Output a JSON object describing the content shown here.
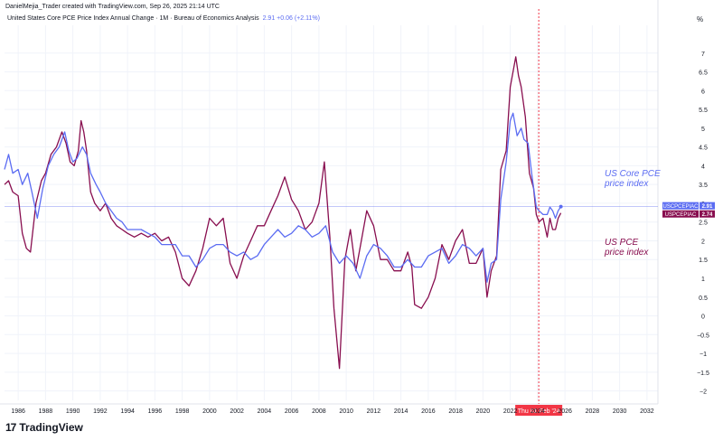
{
  "header": {
    "attribution": "DanielMejia_Trader created with TradingView.com, Sep 26, 2025 21:14 UTC",
    "series_title": "United States Core PCE Price Index Annual Change · 1M · Bureau of Economics Analysis",
    "series_value": "2.91  +0.06 (+2.11%)",
    "unit": "%"
  },
  "footer": {
    "logo_text": "TradingView",
    "logo_mark": "17"
  },
  "colors": {
    "core": "#5b6cf2",
    "pce": "#880e4f",
    "marker": "#f23645",
    "grid": "#f0f3fa",
    "axis_text": "#131722"
  },
  "chart_data": {
    "type": "line",
    "xlim": [
      1985.0,
      2032.8
    ],
    "ylim": [
      -2.25,
      7.5
    ],
    "x_ticks": [
      1986,
      1988,
      1990,
      1992,
      1994,
      1996,
      1998,
      2000,
      2002,
      2004,
      2006,
      2008,
      2010,
      2012,
      2014,
      2016,
      2018,
      2020,
      2022,
      2024,
      2026,
      2028,
      2030,
      2032
    ],
    "x_tick_labels": [
      "1986",
      "1988",
      "1990",
      "1992",
      "1994",
      "1996",
      "1998",
      "2000",
      "2002",
      "2004",
      "2006",
      "2008",
      "2010",
      "2012",
      "2014",
      "2016",
      "2018",
      "2020",
      "2022",
      "2024",
      "2026",
      "2028",
      "2030",
      "2032"
    ],
    "y_ticks": [
      7,
      6.5,
      6,
      5.5,
      5,
      4.5,
      4,
      3.5,
      3,
      2.5,
      2,
      1.5,
      1,
      0.5,
      0,
      -0.5,
      -1,
      -1.5,
      -2
    ],
    "y_tick_labels": [
      "7",
      "6.5",
      "6",
      "5.5",
      "5",
      "4.5",
      "4",
      "3.5",
      "3",
      "2.5",
      "2",
      "1.5",
      "1",
      "0.5",
      "0",
      "−0.5",
      "−1",
      "−1.5",
      "−2"
    ],
    "marker": {
      "x": 2024.083,
      "label": "Thu 01 Feb '24"
    },
    "series": [
      {
        "name": "USCPCEPIAC",
        "value_label": "2.91",
        "last_value": 2.91,
        "color": "#5b6cf2",
        "annotation": [
          "US Core PCE",
          "price index"
        ],
        "points": [
          [
            1985.0,
            3.9
          ],
          [
            1985.3,
            4.3
          ],
          [
            1985.6,
            3.8
          ],
          [
            1986.0,
            3.9
          ],
          [
            1986.3,
            3.5
          ],
          [
            1986.7,
            3.8
          ],
          [
            1987.0,
            3.3
          ],
          [
            1987.4,
            2.6
          ],
          [
            1987.8,
            3.4
          ],
          [
            1988.2,
            4.0
          ],
          [
            1988.6,
            4.3
          ],
          [
            1989.0,
            4.5
          ],
          [
            1989.4,
            4.9
          ],
          [
            1989.7,
            4.4
          ],
          [
            1990.0,
            4.1
          ],
          [
            1990.3,
            4.2
          ],
          [
            1990.7,
            4.5
          ],
          [
            1991.0,
            4.3
          ],
          [
            1991.3,
            3.8
          ],
          [
            1991.7,
            3.5
          ],
          [
            1992.0,
            3.3
          ],
          [
            1992.4,
            3.0
          ],
          [
            1992.8,
            2.8
          ],
          [
            1993.2,
            2.6
          ],
          [
            1993.6,
            2.5
          ],
          [
            1994.0,
            2.3
          ],
          [
            1994.5,
            2.3
          ],
          [
            1995.0,
            2.3
          ],
          [
            1995.5,
            2.2
          ],
          [
            1996.0,
            2.1
          ],
          [
            1996.5,
            1.9
          ],
          [
            1997.0,
            1.9
          ],
          [
            1997.5,
            1.9
          ],
          [
            1998.0,
            1.6
          ],
          [
            1998.5,
            1.6
          ],
          [
            1999.0,
            1.3
          ],
          [
            1999.5,
            1.5
          ],
          [
            2000.0,
            1.8
          ],
          [
            2000.5,
            1.9
          ],
          [
            2001.0,
            1.9
          ],
          [
            2001.5,
            1.7
          ],
          [
            2002.0,
            1.6
          ],
          [
            2002.5,
            1.7
          ],
          [
            2003.0,
            1.5
          ],
          [
            2003.5,
            1.6
          ],
          [
            2004.0,
            1.9
          ],
          [
            2004.5,
            2.1
          ],
          [
            2005.0,
            2.3
          ],
          [
            2005.5,
            2.1
          ],
          [
            2006.0,
            2.2
          ],
          [
            2006.5,
            2.4
          ],
          [
            2007.0,
            2.3
          ],
          [
            2007.5,
            2.1
          ],
          [
            2008.0,
            2.2
          ],
          [
            2008.5,
            2.4
          ],
          [
            2009.0,
            1.7
          ],
          [
            2009.5,
            1.4
          ],
          [
            2010.0,
            1.6
          ],
          [
            2010.5,
            1.4
          ],
          [
            2011.0,
            1.0
          ],
          [
            2011.5,
            1.6
          ],
          [
            2012.0,
            1.9
          ],
          [
            2012.5,
            1.8
          ],
          [
            2013.0,
            1.6
          ],
          [
            2013.5,
            1.3
          ],
          [
            2014.0,
            1.3
          ],
          [
            2014.5,
            1.5
          ],
          [
            2015.0,
            1.3
          ],
          [
            2015.5,
            1.3
          ],
          [
            2016.0,
            1.6
          ],
          [
            2016.5,
            1.7
          ],
          [
            2017.0,
            1.8
          ],
          [
            2017.5,
            1.4
          ],
          [
            2018.0,
            1.6
          ],
          [
            2018.5,
            1.9
          ],
          [
            2019.0,
            1.8
          ],
          [
            2019.5,
            1.6
          ],
          [
            2020.0,
            1.8
          ],
          [
            2020.3,
            0.9
          ],
          [
            2020.6,
            1.4
          ],
          [
            2021.0,
            1.5
          ],
          [
            2021.3,
            3.1
          ],
          [
            2021.7,
            4.1
          ],
          [
            2022.0,
            5.2
          ],
          [
            2022.2,
            5.4
          ],
          [
            2022.5,
            4.8
          ],
          [
            2022.8,
            5.0
          ],
          [
            2023.0,
            4.7
          ],
          [
            2023.3,
            4.6
          ],
          [
            2023.6,
            3.7
          ],
          [
            2023.9,
            2.9
          ],
          [
            2024.1,
            2.8
          ],
          [
            2024.4,
            2.7
          ],
          [
            2024.7,
            2.7
          ],
          [
            2024.9,
            2.9
          ],
          [
            2025.1,
            2.8
          ],
          [
            2025.3,
            2.6
          ],
          [
            2025.5,
            2.8
          ],
          [
            2025.7,
            2.91
          ]
        ]
      },
      {
        "name": "USPCEPIAC",
        "value_label": "2.74",
        "last_value": 2.74,
        "color": "#880e4f",
        "annotation": [
          "US PCE",
          "price index"
        ],
        "points": [
          [
            1985.0,
            3.5
          ],
          [
            1985.3,
            3.6
          ],
          [
            1985.6,
            3.3
          ],
          [
            1986.0,
            3.2
          ],
          [
            1986.3,
            2.2
          ],
          [
            1986.6,
            1.8
          ],
          [
            1986.9,
            1.7
          ],
          [
            1987.3,
            3.0
          ],
          [
            1987.7,
            3.6
          ],
          [
            1988.0,
            3.8
          ],
          [
            1988.4,
            4.3
          ],
          [
            1988.8,
            4.5
          ],
          [
            1989.2,
            4.9
          ],
          [
            1989.5,
            4.6
          ],
          [
            1989.8,
            4.1
          ],
          [
            1990.1,
            4.0
          ],
          [
            1990.4,
            4.4
          ],
          [
            1990.6,
            5.2
          ],
          [
            1990.8,
            4.9
          ],
          [
            1991.0,
            4.4
          ],
          [
            1991.3,
            3.3
          ],
          [
            1991.6,
            3.0
          ],
          [
            1992.0,
            2.8
          ],
          [
            1992.4,
            3.0
          ],
          [
            1992.8,
            2.6
          ],
          [
            1993.2,
            2.4
          ],
          [
            1993.6,
            2.3
          ],
          [
            1994.0,
            2.2
          ],
          [
            1994.5,
            2.1
          ],
          [
            1995.0,
            2.2
          ],
          [
            1995.5,
            2.1
          ],
          [
            1996.0,
            2.2
          ],
          [
            1996.5,
            2.0
          ],
          [
            1997.0,
            2.1
          ],
          [
            1997.5,
            1.7
          ],
          [
            1998.0,
            1.0
          ],
          [
            1998.5,
            0.8
          ],
          [
            1999.0,
            1.2
          ],
          [
            1999.5,
            1.8
          ],
          [
            2000.0,
            2.6
          ],
          [
            2000.5,
            2.4
          ],
          [
            2001.0,
            2.6
          ],
          [
            2001.5,
            1.4
          ],
          [
            2002.0,
            1.0
          ],
          [
            2002.5,
            1.6
          ],
          [
            2003.0,
            2.0
          ],
          [
            2003.5,
            2.4
          ],
          [
            2004.0,
            2.4
          ],
          [
            2004.5,
            2.8
          ],
          [
            2005.0,
            3.2
          ],
          [
            2005.5,
            3.7
          ],
          [
            2006.0,
            3.1
          ],
          [
            2006.5,
            2.8
          ],
          [
            2007.0,
            2.3
          ],
          [
            2007.5,
            2.5
          ],
          [
            2008.0,
            3.0
          ],
          [
            2008.4,
            4.1
          ],
          [
            2008.8,
            2.1
          ],
          [
            2009.1,
            0.2
          ],
          [
            2009.5,
            -1.4
          ],
          [
            2009.9,
            1.5
          ],
          [
            2010.3,
            2.3
          ],
          [
            2010.7,
            1.2
          ],
          [
            2011.0,
            1.8
          ],
          [
            2011.5,
            2.8
          ],
          [
            2012.0,
            2.4
          ],
          [
            2012.5,
            1.5
          ],
          [
            2013.0,
            1.5
          ],
          [
            2013.5,
            1.2
          ],
          [
            2014.0,
            1.2
          ],
          [
            2014.5,
            1.7
          ],
          [
            2014.8,
            1.3
          ],
          [
            2015.0,
            0.3
          ],
          [
            2015.5,
            0.2
          ],
          [
            2016.0,
            0.5
          ],
          [
            2016.5,
            1.0
          ],
          [
            2017.0,
            1.9
          ],
          [
            2017.5,
            1.5
          ],
          [
            2018.0,
            2.0
          ],
          [
            2018.5,
            2.3
          ],
          [
            2019.0,
            1.4
          ],
          [
            2019.5,
            1.4
          ],
          [
            2020.0,
            1.8
          ],
          [
            2020.3,
            0.5
          ],
          [
            2020.6,
            1.2
          ],
          [
            2021.0,
            1.6
          ],
          [
            2021.3,
            3.9
          ],
          [
            2021.7,
            4.4
          ],
          [
            2022.0,
            6.1
          ],
          [
            2022.4,
            6.9
          ],
          [
            2022.6,
            6.4
          ],
          [
            2022.8,
            6.1
          ],
          [
            2023.1,
            5.3
          ],
          [
            2023.4,
            3.8
          ],
          [
            2023.7,
            3.4
          ],
          [
            2023.9,
            2.7
          ],
          [
            2024.1,
            2.5
          ],
          [
            2024.4,
            2.6
          ],
          [
            2024.7,
            2.1
          ],
          [
            2024.9,
            2.6
          ],
          [
            2025.1,
            2.3
          ],
          [
            2025.3,
            2.3
          ],
          [
            2025.5,
            2.6
          ],
          [
            2025.7,
            2.74
          ]
        ]
      }
    ]
  }
}
